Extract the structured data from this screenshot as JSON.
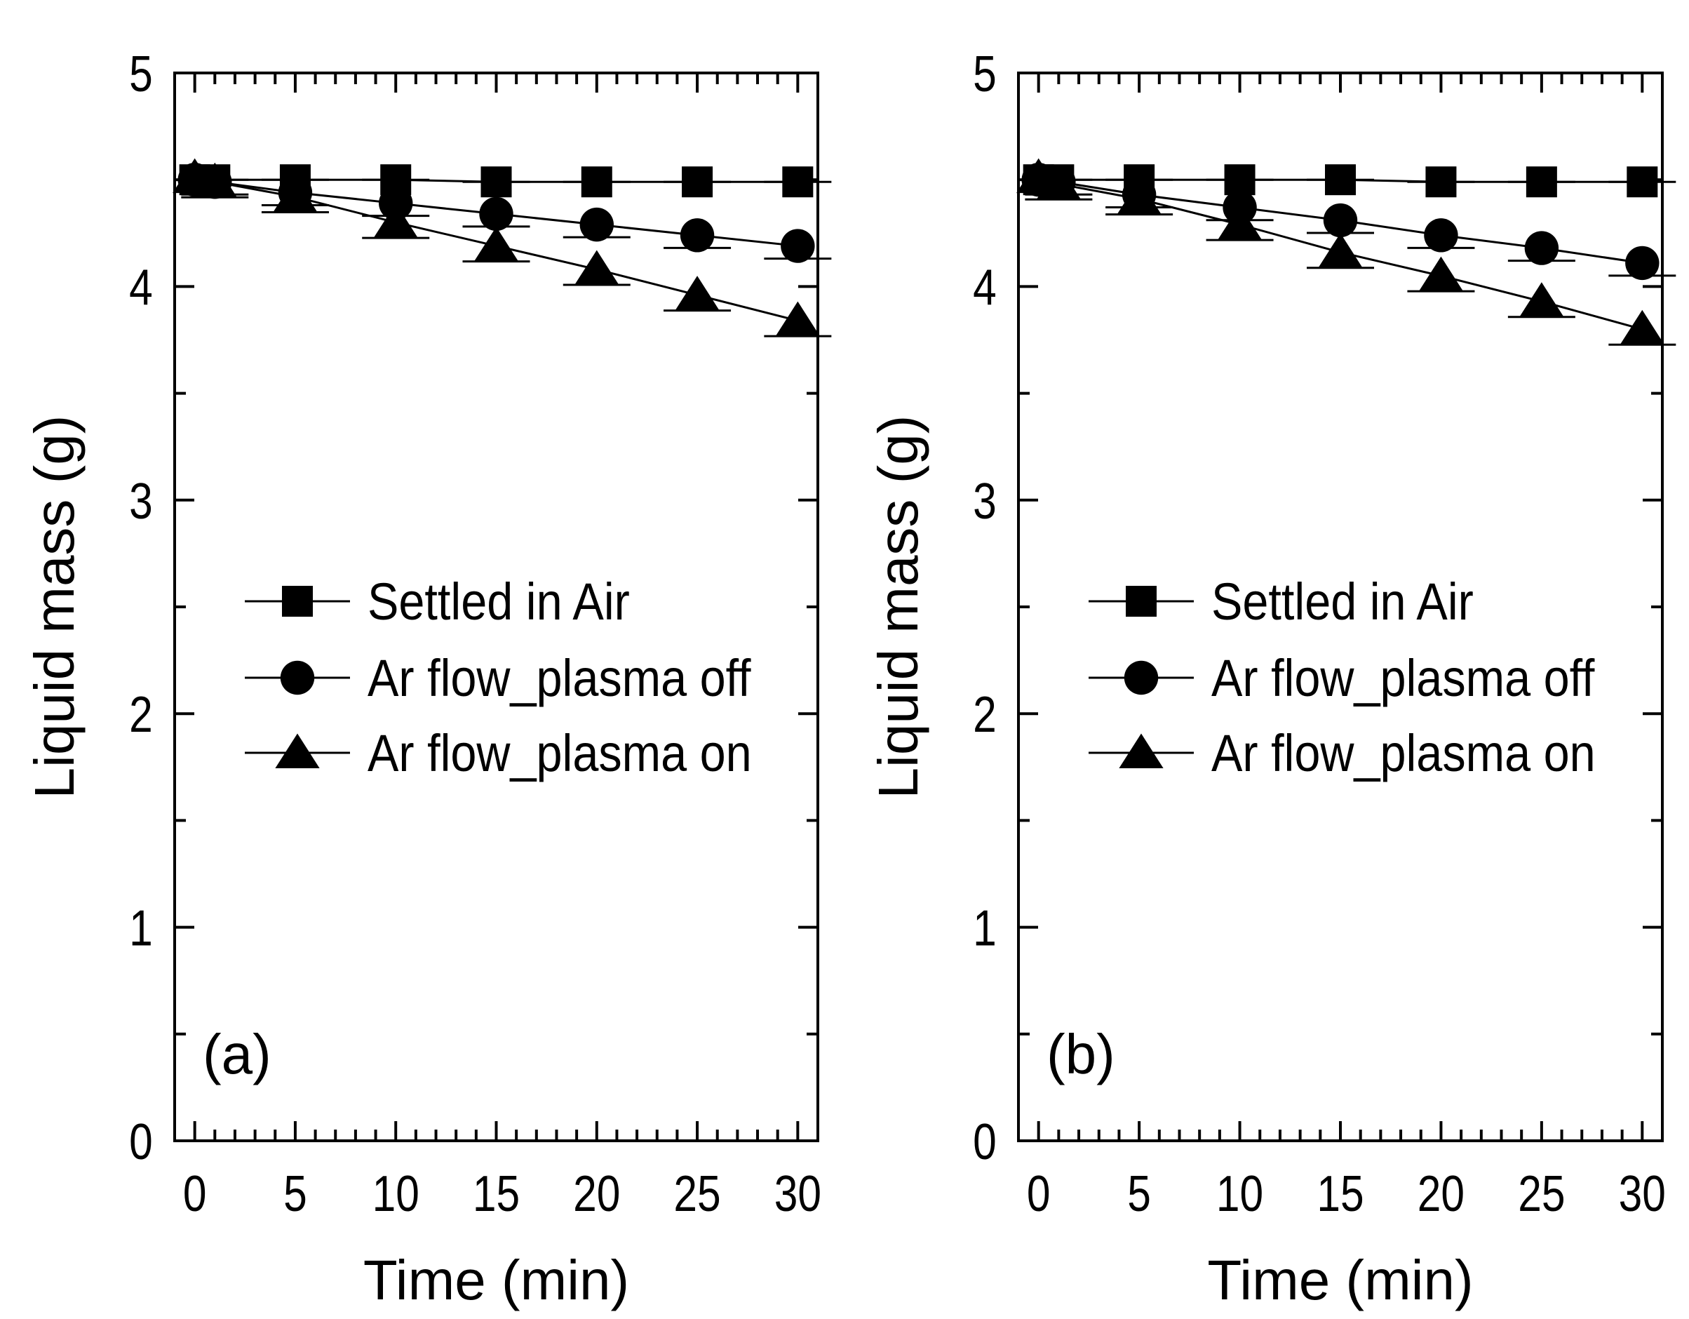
{
  "chart_data": [
    {
      "type": "line",
      "panel_label": "(a)",
      "xlabel": "Time (min)",
      "ylabel": "Liquid mass (g)",
      "xlim": [
        -1,
        31
      ],
      "ylim": [
        0,
        5
      ],
      "xticks": [
        0,
        5,
        10,
        15,
        20,
        25,
        30
      ],
      "yticks": [
        0,
        1,
        2,
        3,
        4,
        5
      ],
      "x": [
        0,
        1,
        5,
        10,
        15,
        20,
        25,
        30
      ],
      "legend_position": "center-left",
      "series": [
        {
          "name": "Settled in Air",
          "marker": "square",
          "values": [
            4.5,
            4.5,
            4.5,
            4.5,
            4.49,
            4.49,
            4.49,
            4.49
          ]
        },
        {
          "name": "Ar flow_plasma off",
          "marker": "circle",
          "values": [
            4.5,
            4.49,
            4.44,
            4.39,
            4.34,
            4.29,
            4.24,
            4.19
          ]
        },
        {
          "name": "Ar flow_plasma on",
          "marker": "triangle",
          "values": [
            4.51,
            4.49,
            4.42,
            4.3,
            4.19,
            4.08,
            3.96,
            3.84
          ]
        }
      ]
    },
    {
      "type": "line",
      "panel_label": "(b)",
      "xlabel": "Time (min)",
      "ylabel": "Liquid mass (g)",
      "xlim": [
        -1,
        31
      ],
      "ylim": [
        0,
        5
      ],
      "xticks": [
        0,
        5,
        10,
        15,
        20,
        25,
        30
      ],
      "yticks": [
        0,
        1,
        2,
        3,
        4,
        5
      ],
      "x": [
        0,
        1,
        5,
        10,
        15,
        20,
        25,
        30
      ],
      "legend_position": "center-left",
      "series": [
        {
          "name": "Settled in Air",
          "marker": "square",
          "values": [
            4.5,
            4.5,
            4.5,
            4.5,
            4.5,
            4.49,
            4.49,
            4.49
          ]
        },
        {
          "name": "Ar flow_plasma off",
          "marker": "circle",
          "values": [
            4.5,
            4.49,
            4.43,
            4.37,
            4.31,
            4.24,
            4.18,
            4.11
          ]
        },
        {
          "name": "Ar flow_plasma on",
          "marker": "triangle",
          "values": [
            4.51,
            4.48,
            4.41,
            4.29,
            4.16,
            4.05,
            3.93,
            3.8
          ]
        }
      ]
    }
  ]
}
